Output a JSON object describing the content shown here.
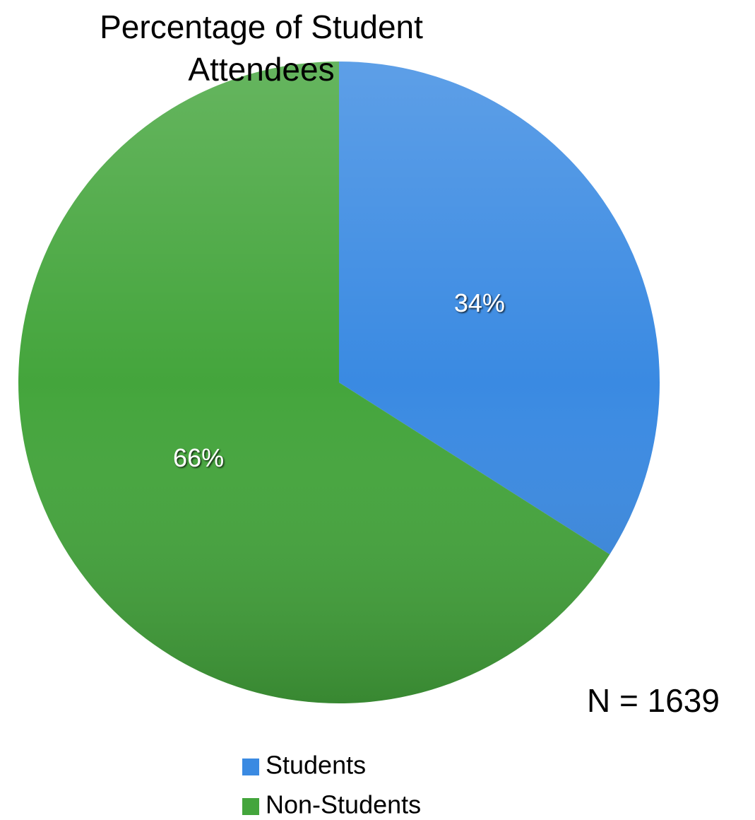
{
  "chart_data": {
    "type": "pie",
    "title": "Percentage of Student Attendees",
    "categories": [
      "Students",
      "Non-Students"
    ],
    "values": [
      34,
      66
    ],
    "value_labels": [
      "34%",
      "66%"
    ],
    "colors": [
      "#3a8ae2",
      "#44a53c"
    ],
    "legend": "bottom",
    "annotation": "N = 1639"
  }
}
